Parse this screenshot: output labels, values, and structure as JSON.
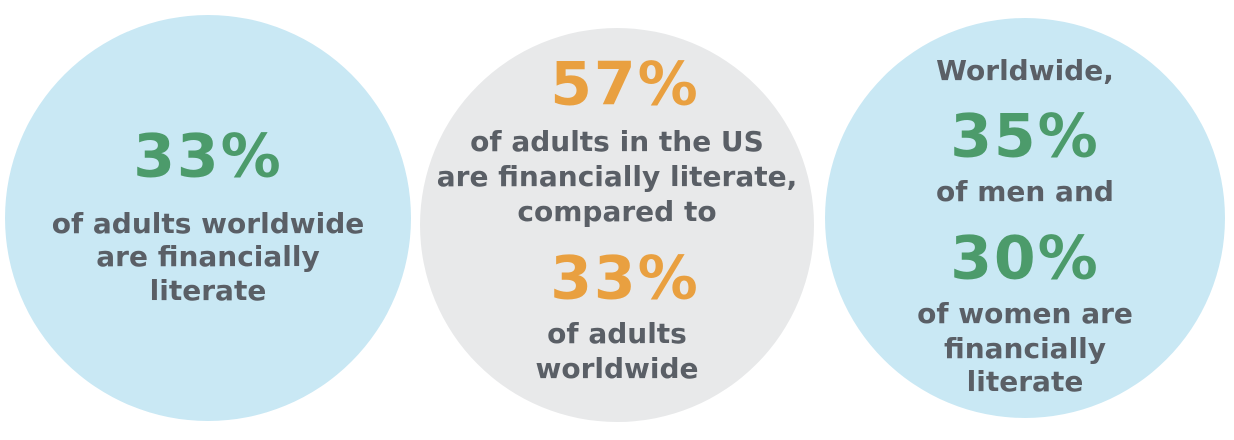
{
  "circles": [
    {
      "stat": "33%",
      "lines": [
        "of adults worldwide",
        "are financially",
        "literate"
      ]
    },
    {
      "stat": "57%",
      "lines": [
        "of adults in the US",
        "are financially literate,",
        "compared to"
      ],
      "stat2": "33%",
      "lines2": [
        "of adults",
        "worldwide"
      ]
    },
    {
      "lead": "Worldwide,",
      "stat": "35%",
      "lines": [
        "of men and"
      ],
      "stat2": "30%",
      "lines2": [
        "of women are",
        "financially",
        "literate"
      ]
    }
  ]
}
